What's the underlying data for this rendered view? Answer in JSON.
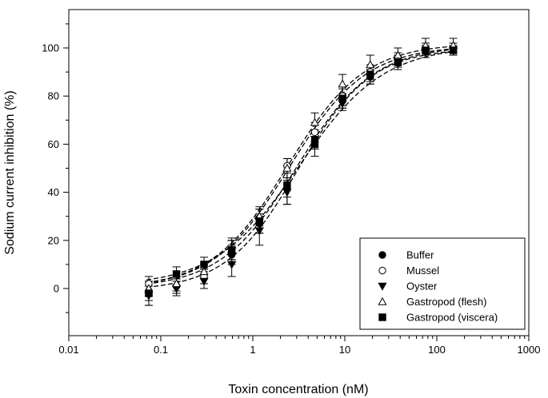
{
  "chart_data": {
    "type": "scatter",
    "xlabel": "Toxin concentration (nM)",
    "ylabel": "Sodium current inhibition (%)",
    "x_scale": "log",
    "xlim": [
      0.01,
      1000
    ],
    "ylim": [
      -15,
      115
    ],
    "x_ticks": [
      "0.01",
      "0.1",
      "1",
      "10",
      "100",
      "1000"
    ],
    "y_ticks": [
      "0",
      "20",
      "40",
      "60",
      "80",
      "100"
    ],
    "legend_position": "bottom-right",
    "grid": false,
    "series": [
      {
        "name": "Buffer",
        "marker": "circle-filled",
        "x": [
          0.074,
          0.148,
          0.295,
          0.59,
          1.18,
          2.36,
          4.72,
          9.44,
          18.9,
          37.8,
          75.5,
          151
        ],
        "y": [
          -1,
          1,
          5,
          14,
          27,
          42,
          62,
          78,
          88,
          95,
          99,
          100
        ],
        "err": [
          4,
          3,
          3,
          4,
          4,
          4,
          4,
          3,
          3,
          2,
          2,
          2
        ]
      },
      {
        "name": "Mussel",
        "marker": "circle-open",
        "x": [
          0.074,
          0.148,
          0.295,
          0.59,
          1.18,
          2.36,
          4.72,
          9.44,
          18.9,
          37.8,
          75.5,
          151
        ],
        "y": [
          2,
          1,
          5,
          16,
          29,
          51,
          65,
          80,
          90,
          96,
          100,
          100
        ],
        "err": [
          3,
          3,
          3,
          4,
          4,
          3,
          4,
          4,
          3,
          2,
          2,
          2
        ]
      },
      {
        "name": "Oyster",
        "marker": "triangle-down-filled",
        "x": [
          0.074,
          0.148,
          0.295,
          0.59,
          1.18,
          2.36,
          4.72,
          9.44,
          18.9,
          37.8,
          75.5,
          151
        ],
        "y": [
          -3,
          0,
          3,
          10,
          24,
          40,
          62,
          77,
          88,
          94,
          98,
          99
        ],
        "err": [
          4,
          3,
          3,
          5,
          6,
          5,
          4,
          3,
          3,
          2,
          2,
          2
        ]
      },
      {
        "name": "Gastropod (flesh)",
        "marker": "triangle-up-open",
        "x": [
          0.074,
          0.148,
          0.295,
          0.59,
          1.18,
          2.36,
          4.72,
          9.44,
          18.9,
          37.8,
          75.5,
          151
        ],
        "y": [
          0,
          2,
          7,
          16,
          30,
          50,
          69,
          85,
          93,
          97,
          101,
          101
        ],
        "err": [
          3,
          3,
          3,
          4,
          4,
          4,
          4,
          4,
          4,
          3,
          3,
          3
        ]
      },
      {
        "name": "Gastropod (viscera)",
        "marker": "square-filled",
        "x": [
          0.074,
          0.148,
          0.295,
          0.59,
          1.18,
          2.36,
          4.72,
          9.44,
          18.9,
          37.8,
          75.5,
          151
        ],
        "y": [
          -2,
          6,
          10,
          16,
          28,
          43,
          60,
          79,
          89,
          94,
          99,
          99
        ],
        "err": [
          5,
          3,
          3,
          5,
          5,
          8,
          5,
          4,
          3,
          3,
          2,
          2
        ]
      }
    ],
    "fit_curves": [
      {
        "series": "Buffer",
        "bottom": 0,
        "top": 101,
        "ec50": 3.0,
        "hill": 1.05
      },
      {
        "series": "Mussel",
        "bottom": 0,
        "top": 101,
        "ec50": 2.5,
        "hill": 1.05
      },
      {
        "series": "Oyster",
        "bottom": -1,
        "top": 100,
        "ec50": 3.1,
        "hill": 1.1
      },
      {
        "series": "Gastropod (flesh)",
        "bottom": 0,
        "top": 102,
        "ec50": 2.4,
        "hill": 1.05
      },
      {
        "series": "Gastropod (viscera)",
        "bottom": 1,
        "top": 101,
        "ec50": 3.2,
        "hill": 0.95
      }
    ]
  }
}
